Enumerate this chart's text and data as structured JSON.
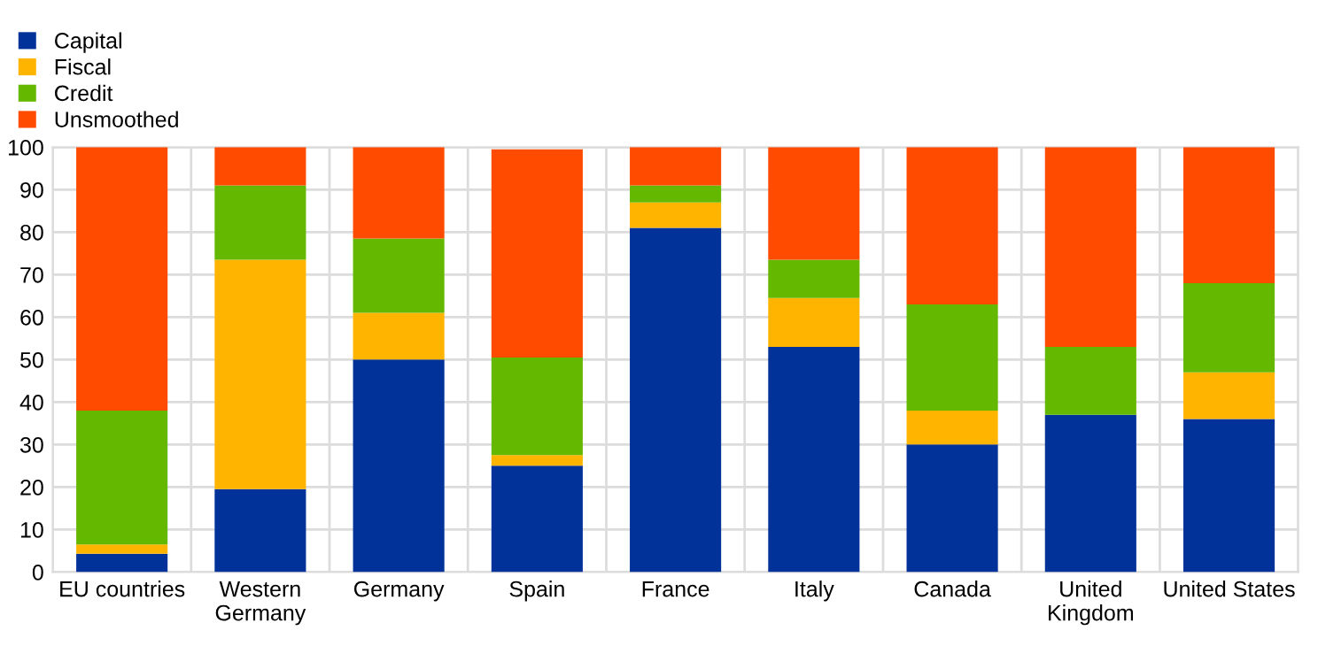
{
  "chart_data": {
    "type": "bar",
    "stacked": true,
    "categories": [
      "EU countries",
      "Western\nGermany",
      "Germany",
      "Spain",
      "France",
      "Italy",
      "Canada",
      "United\nKingdom",
      "United States"
    ],
    "series": [
      {
        "name": "Capital",
        "color": "#003299",
        "values": [
          4.3,
          19.5,
          50,
          25,
          81,
          53,
          30,
          37,
          36
        ]
      },
      {
        "name": "Fiscal",
        "color": "#ffb400",
        "values": [
          2.2,
          54,
          11,
          2.5,
          6,
          11.5,
          8,
          0,
          11
        ]
      },
      {
        "name": "Credit",
        "color": "#65b800",
        "values": [
          31.5,
          17.5,
          17.5,
          23,
          4,
          9,
          25,
          16,
          21
        ]
      },
      {
        "name": "Unsmoothed",
        "color": "#ff4b00",
        "values": [
          62,
          9,
          21.5,
          49,
          9,
          26.5,
          37,
          47,
          32
        ]
      }
    ],
    "ylim": [
      0,
      100
    ],
    "yticks": [
      0,
      10,
      20,
      30,
      40,
      50,
      60,
      70,
      80,
      90,
      100
    ],
    "grid": true,
    "legend": "top left"
  }
}
